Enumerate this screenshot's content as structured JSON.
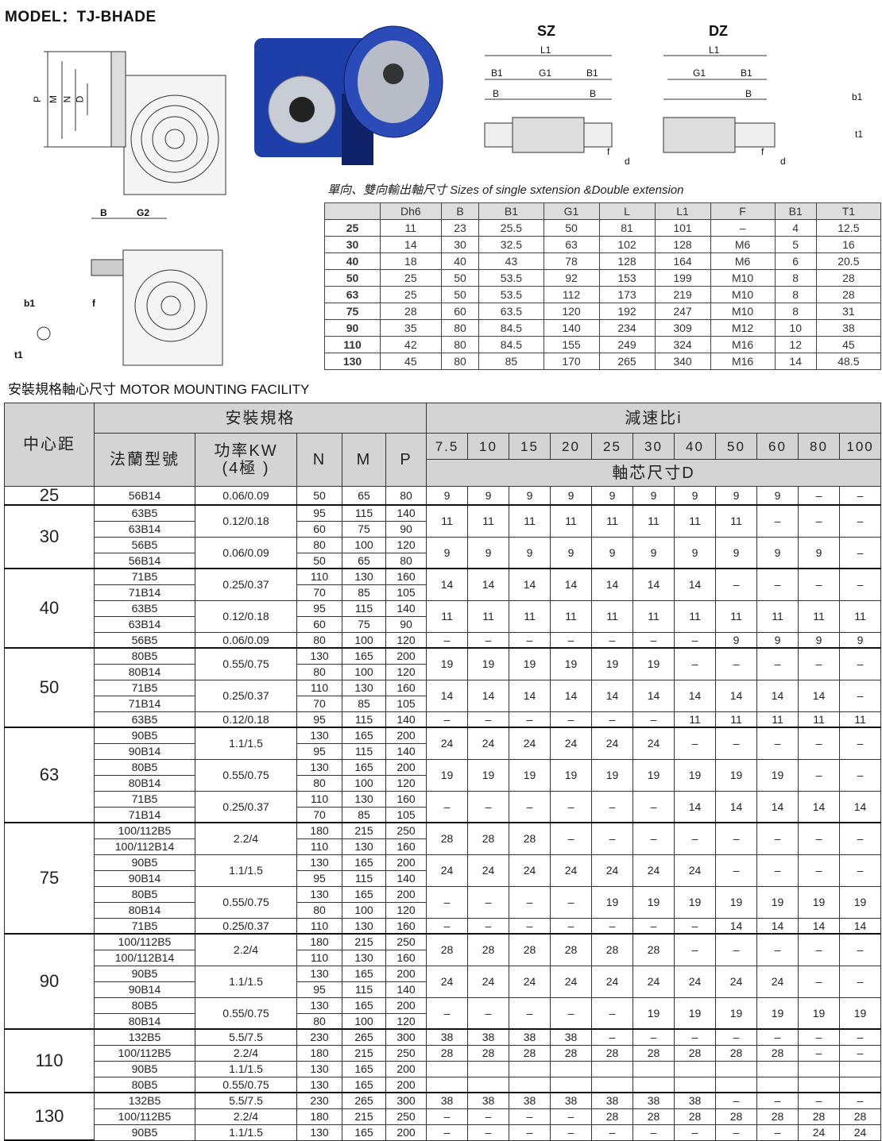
{
  "model": "MODEL：TJ-BHADE",
  "drawing_labels": {
    "front": [
      "P",
      "M",
      "N",
      "D"
    ],
    "side": [
      "B",
      "G2",
      "b1",
      "t1",
      "f"
    ],
    "sz_title": "SZ",
    "dz_title": "DZ",
    "sz": [
      "L1",
      "B1",
      "G1",
      "B1",
      "B",
      "B",
      "f",
      "d"
    ],
    "dz": [
      "L1",
      "G1",
      "B1",
      "B",
      "f",
      "d"
    ],
    "key": [
      "b1",
      "t1"
    ]
  },
  "caption": "單向、雙向輸出軸尺寸  Sizes of single sxtension &Double extension",
  "spec_table": {
    "headers": [
      "",
      "Dh6",
      "B",
      "B1",
      "G1",
      "L",
      "L1",
      "F",
      "B1",
      "T1"
    ],
    "rows": [
      [
        "25",
        "11",
        "23",
        "25.5",
        "50",
        "81",
        "101",
        "–",
        "4",
        "12.5"
      ],
      [
        "30",
        "14",
        "30",
        "32.5",
        "63",
        "102",
        "128",
        "M6",
        "5",
        "16"
      ],
      [
        "40",
        "18",
        "40",
        "43",
        "78",
        "128",
        "164",
        "M6",
        "6",
        "20.5"
      ],
      [
        "50",
        "25",
        "50",
        "53.5",
        "92",
        "153",
        "199",
        "M10",
        "8",
        "28"
      ],
      [
        "63",
        "25",
        "50",
        "53.5",
        "112",
        "173",
        "219",
        "M10",
        "8",
        "28"
      ],
      [
        "75",
        "28",
        "60",
        "63.5",
        "120",
        "192",
        "247",
        "M10",
        "8",
        "31"
      ],
      [
        "90",
        "35",
        "80",
        "84.5",
        "140",
        "234",
        "309",
        "M12",
        "10",
        "38"
      ],
      [
        "110",
        "42",
        "80",
        "84.5",
        "155",
        "249",
        "324",
        "M16",
        "12",
        "45"
      ],
      [
        "130",
        "45",
        "80",
        "85",
        "170",
        "265",
        "340",
        "M16",
        "14",
        "48.5"
      ]
    ]
  },
  "section_title": "安裝規格軸心尺寸 MOTOR MOUNTING FACILITY",
  "mount_table": {
    "h_center": "中心距",
    "h_install": "安裝規格",
    "h_ratio": "減速比i",
    "h_flange": "法蘭型號",
    "h_power": "功率KW\n(4極 )",
    "h_n": "N",
    "h_m": "M",
    "h_p": "P",
    "h_d": "軸芯尺寸D",
    "ratios": [
      "7.5",
      "10",
      "15",
      "20",
      "25",
      "30",
      "40",
      "50",
      "60",
      "80",
      "100"
    ],
    "groups": [
      {
        "center": "25",
        "blocks": [
          {
            "power": "0.06/0.09",
            "flanges": [
              [
                "56B14",
                "50",
                "65",
                "80"
              ]
            ],
            "d": [
              "9",
              "9",
              "9",
              "9",
              "9",
              "9",
              "9",
              "9",
              "9",
              "–",
              "–"
            ]
          }
        ]
      },
      {
        "center": "30",
        "blocks": [
          {
            "power": "0.12/0.18",
            "flanges": [
              [
                "63B5",
                "95",
                "115",
                "140"
              ],
              [
                "63B14",
                "60",
                "75",
                "90"
              ]
            ],
            "d": [
              "11",
              "11",
              "11",
              "11",
              "11",
              "11",
              "11",
              "11",
              "–",
              "–",
              "–"
            ]
          },
          {
            "power": "0.06/0.09",
            "flanges": [
              [
                "56B5",
                "80",
                "100",
                "120"
              ],
              [
                "56B14",
                "50",
                "65",
                "80"
              ]
            ],
            "d": [
              "9",
              "9",
              "9",
              "9",
              "9",
              "9",
              "9",
              "9",
              "9",
              "9",
              "–"
            ]
          }
        ]
      },
      {
        "center": "40",
        "blocks": [
          {
            "power": "0.25/0.37",
            "flanges": [
              [
                "71B5",
                "110",
                "130",
                "160"
              ],
              [
                "71B14",
                "70",
                "85",
                "105"
              ]
            ],
            "d": [
              "14",
              "14",
              "14",
              "14",
              "14",
              "14",
              "14",
              "–",
              "–",
              "–",
              "–"
            ]
          },
          {
            "power": "0.12/0.18",
            "flanges": [
              [
                "63B5",
                "95",
                "115",
                "140"
              ],
              [
                "63B14",
                "60",
                "75",
                "90"
              ]
            ],
            "d": [
              "11",
              "11",
              "11",
              "11",
              "11",
              "11",
              "11",
              "11",
              "11",
              "11",
              "11"
            ]
          },
          {
            "power": "0.06/0.09",
            "flanges": [
              [
                "56B5",
                "80",
                "100",
                "120"
              ]
            ],
            "d": [
              "–",
              "–",
              "–",
              "–",
              "–",
              "–",
              "–",
              "9",
              "9",
              "9",
              "9"
            ]
          }
        ]
      },
      {
        "center": "50",
        "blocks": [
          {
            "power": "0.55/0.75",
            "flanges": [
              [
                "80B5",
                "130",
                "165",
                "200"
              ],
              [
                "80B14",
                "80",
                "100",
                "120"
              ]
            ],
            "d": [
              "19",
              "19",
              "19",
              "19",
              "19",
              "19",
              "–",
              "–",
              "–",
              "–",
              "–"
            ]
          },
          {
            "power": "0.25/0.37",
            "flanges": [
              [
                "71B5",
                "110",
                "130",
                "160"
              ],
              [
                "71B14",
                "70",
                "85",
                "105"
              ]
            ],
            "d": [
              "14",
              "14",
              "14",
              "14",
              "14",
              "14",
              "14",
              "14",
              "14",
              "14",
              "–"
            ]
          },
          {
            "power": "0.12/0.18",
            "flanges": [
              [
                "63B5",
                "95",
                "115",
                "140"
              ]
            ],
            "d": [
              "–",
              "–",
              "–",
              "–",
              "–",
              "–",
              "11",
              "11",
              "11",
              "11",
              "11"
            ]
          }
        ]
      },
      {
        "center": "63",
        "blocks": [
          {
            "power": "1.1/1.5",
            "flanges": [
              [
                "90B5",
                "130",
                "165",
                "200"
              ],
              [
                "90B14",
                "95",
                "115",
                "140"
              ]
            ],
            "d": [
              "24",
              "24",
              "24",
              "24",
              "24",
              "24",
              "–",
              "–",
              "–",
              "–",
              "–"
            ]
          },
          {
            "power": "0.55/0.75",
            "flanges": [
              [
                "80B5",
                "130",
                "165",
                "200"
              ],
              [
                "80B14",
                "80",
                "100",
                "120"
              ]
            ],
            "d": [
              "19",
              "19",
              "19",
              "19",
              "19",
              "19",
              "19",
              "19",
              "19",
              "–",
              "–"
            ]
          },
          {
            "power": "0.25/0.37",
            "flanges": [
              [
                "71B5",
                "110",
                "130",
                "160"
              ],
              [
                "71B14",
                "70",
                "85",
                "105"
              ]
            ],
            "d": [
              "–",
              "–",
              "–",
              "–",
              "–",
              "–",
              "14",
              "14",
              "14",
              "14",
              "14"
            ]
          }
        ]
      },
      {
        "center": "75",
        "blocks": [
          {
            "power": "2.2/4",
            "flanges": [
              [
                "100/112B5",
                "180",
                "215",
                "250"
              ],
              [
                "100/112B14",
                "110",
                "130",
                "160"
              ]
            ],
            "d": [
              "28",
              "28",
              "28",
              "–",
              "–",
              "–",
              "–",
              "–",
              "–",
              "–",
              "–"
            ]
          },
          {
            "power": "1.1/1.5",
            "flanges": [
              [
                "90B5",
                "130",
                "165",
                "200"
              ],
              [
                "90B14",
                "95",
                "115",
                "140"
              ]
            ],
            "d": [
              "24",
              "24",
              "24",
              "24",
              "24",
              "24",
              "24",
              "–",
              "–",
              "–",
              "–"
            ]
          },
          {
            "power": "0.55/0.75",
            "flanges": [
              [
                "80B5",
                "130",
                "165",
                "200"
              ],
              [
                "80B14",
                "80",
                "100",
                "120"
              ]
            ],
            "d": [
              "–",
              "–",
              "–",
              "–",
              "19",
              "19",
              "19",
              "19",
              "19",
              "19",
              "19"
            ]
          },
          {
            "power": "0.25/0.37",
            "flanges": [
              [
                "71B5",
                "110",
                "130",
                "160"
              ]
            ],
            "d": [
              "–",
              "–",
              "–",
              "–",
              "–",
              "–",
              "–",
              "14",
              "14",
              "14",
              "14"
            ]
          }
        ]
      },
      {
        "center": "90",
        "blocks": [
          {
            "power": "2.2/4",
            "flanges": [
              [
                "100/112B5",
                "180",
                "215",
                "250"
              ],
              [
                "100/112B14",
                "110",
                "130",
                "160"
              ]
            ],
            "d": [
              "28",
              "28",
              "28",
              "28",
              "28",
              "28",
              "–",
              "–",
              "–",
              "–",
              "–"
            ]
          },
          {
            "power": "1.1/1.5",
            "flanges": [
              [
                "90B5",
                "130",
                "165",
                "200"
              ],
              [
                "90B14",
                "95",
                "115",
                "140"
              ]
            ],
            "d": [
              "24",
              "24",
              "24",
              "24",
              "24",
              "24",
              "24",
              "24",
              "24",
              "–",
              "–"
            ]
          },
          {
            "power": "0.55/0.75",
            "flanges": [
              [
                "80B5",
                "130",
                "165",
                "200"
              ],
              [
                "80B14",
                "80",
                "100",
                "120"
              ]
            ],
            "d": [
              "–",
              "–",
              "–",
              "–",
              "–",
              "19",
              "19",
              "19",
              "19",
              "19",
              "19"
            ]
          }
        ]
      },
      {
        "center": "110",
        "blocks": [
          {
            "power": "5.5/7.5",
            "flanges": [
              [
                "132B5",
                "230",
                "265",
                "300"
              ]
            ],
            "d": [
              "38",
              "38",
              "38",
              "38",
              "–",
              "–",
              "–",
              "–",
              "–",
              "–",
              "–"
            ]
          },
          {
            "power": "2.2/4",
            "flanges": [
              [
                "100/112B5",
                "180",
                "215",
                "250"
              ]
            ],
            "d": [
              "28",
              "28",
              "28",
              "28",
              "28",
              "28",
              "28",
              "28",
              "28",
              "–",
              "–"
            ]
          },
          {
            "power": "1.1/1.5",
            "flanges": [
              [
                "90B5",
                "130",
                "165",
                "200"
              ]
            ],
            "d": [
              "",
              "",
              "",
              "",
              "",
              "",
              "",
              "",
              "",
              "",
              ""
            ]
          },
          {
            "power": "0.55/0.75",
            "flanges": [
              [
                "80B5",
                "130",
                "165",
                "200"
              ]
            ],
            "d": [
              "",
              "",
              "",
              "",
              "",
              "",
              "",
              "",
              "",
              "",
              ""
            ]
          }
        ]
      },
      {
        "center": "130",
        "blocks": [
          {
            "power": "5.5/7.5",
            "flanges": [
              [
                "132B5",
                "230",
                "265",
                "300"
              ]
            ],
            "d": [
              "38",
              "38",
              "38",
              "38",
              "38",
              "38",
              "38",
              "–",
              "–",
              "–",
              "–"
            ]
          },
          {
            "power": "2.2/4",
            "flanges": [
              [
                "100/112B5",
                "180",
                "215",
                "250"
              ]
            ],
            "d": [
              "–",
              "–",
              "–",
              "–",
              "28",
              "28",
              "28",
              "28",
              "28",
              "28",
              "28"
            ]
          },
          {
            "power": "1.1/1.5",
            "flanges": [
              [
                "90B5",
                "130",
                "165",
                "200"
              ]
            ],
            "d": [
              "–",
              "–",
              "–",
              "–",
              "–",
              "–",
              "–",
              "–",
              "–",
              "24",
              "24"
            ]
          }
        ]
      }
    ]
  }
}
